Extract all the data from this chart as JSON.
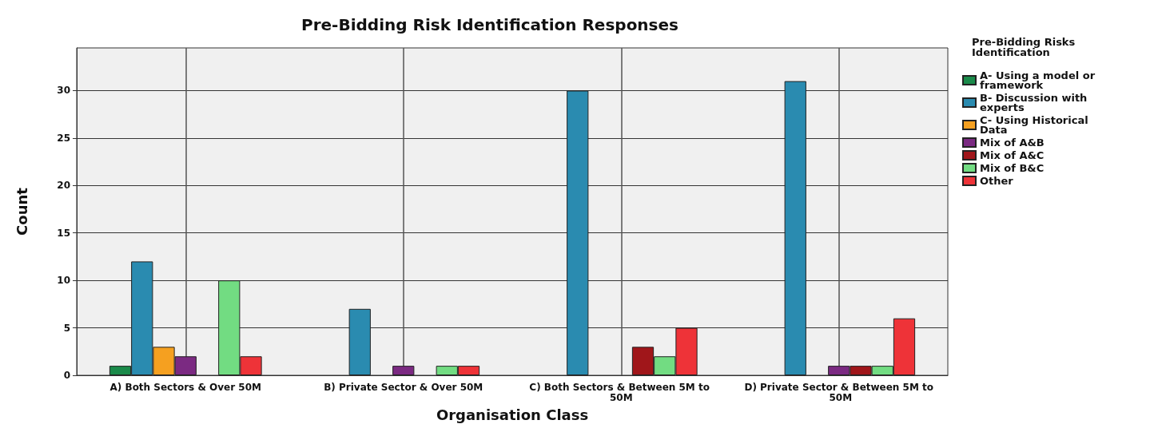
{
  "chart_data": {
    "type": "bar",
    "title": "Pre-Bidding Risk Identification Responses",
    "xlabel": "Organisation Class",
    "ylabel": "Count",
    "legend_title": "Pre-Bidding Risks Identification",
    "categories": [
      "A) Both Sectors & Over 50M",
      "B) Private Sector & Over 50M",
      "C) Both Sectors & Between 5M to 50M",
      "D) Private Sector & Between 5M to 50M"
    ],
    "series": [
      {
        "name": "A- Using a model or framework",
        "color": "#1a8a4a",
        "values": [
          1,
          null,
          null,
          null
        ]
      },
      {
        "name": "B- Discussion with experts",
        "color": "#2a8bb0",
        "values": [
          12,
          7,
          30,
          31
        ]
      },
      {
        "name": "C- Using Historical Data",
        "color": "#f5a020",
        "values": [
          3,
          null,
          null,
          null
        ]
      },
      {
        "name": "Mix of A&B",
        "color": "#7b2a82",
        "values": [
          2,
          1,
          null,
          1
        ]
      },
      {
        "name": "Mix of A&C",
        "color": "#a0161a",
        "values": [
          null,
          null,
          3,
          1
        ]
      },
      {
        "name": "Mix of B&C",
        "color": "#72dc82",
        "values": [
          10,
          1,
          2,
          1
        ]
      },
      {
        "name": "Other",
        "color": "#ee3338",
        "values": [
          2,
          1,
          5,
          6
        ]
      }
    ],
    "ylim": [
      0,
      34.5
    ],
    "yticks": [
      0,
      5,
      10,
      15,
      20,
      25,
      30
    ],
    "grid": true,
    "legend": "right"
  }
}
